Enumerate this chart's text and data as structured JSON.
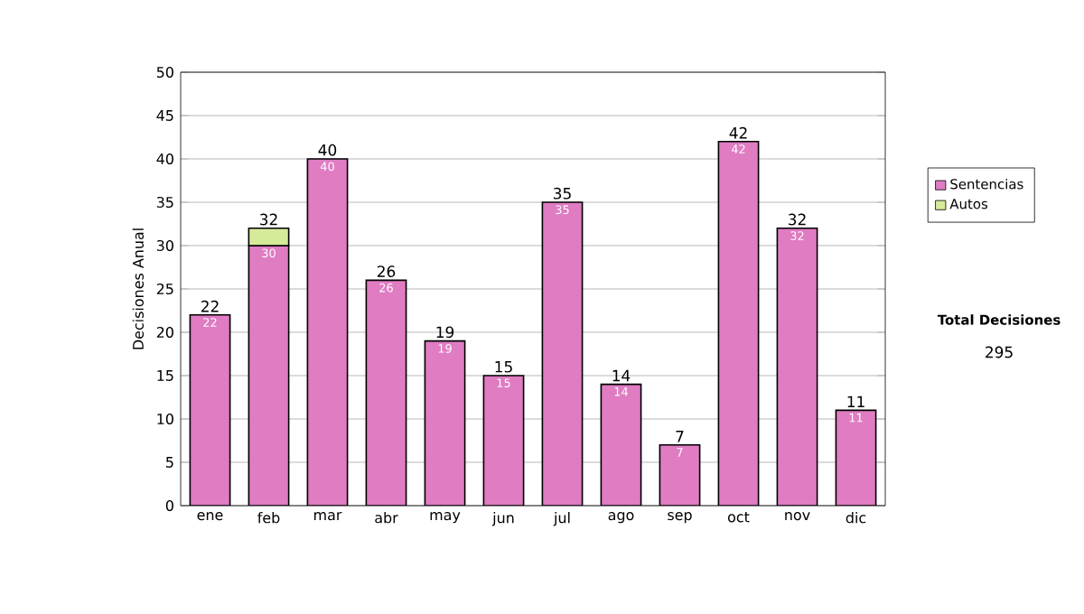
{
  "chart_data": {
    "type": "bar",
    "stacked": true,
    "categories": [
      "ene",
      "feb",
      "mar",
      "abr",
      "may",
      "jun",
      "jul",
      "ago",
      "sep",
      "oct",
      "nov",
      "dic"
    ],
    "ylabel": "Decisiones Anual",
    "series": [
      {
        "name": "Sentencias",
        "color": "#df7cc2",
        "values": [
          22,
          30,
          40,
          26,
          19,
          15,
          35,
          14,
          7,
          42,
          32,
          11
        ],
        "value_labels": [
          "22",
          "30",
          "40",
          "26",
          "19",
          "15",
          "35",
          "14",
          "7",
          "42",
          "32",
          "11"
        ]
      },
      {
        "name": "Autos",
        "color": "#d6eb9a",
        "values": [
          null,
          2,
          null,
          null,
          null,
          null,
          null,
          null,
          null,
          null,
          null,
          null
        ]
      }
    ],
    "totals": [
      "22",
      "32",
      "40",
      "26",
      "19",
      "15",
      "35",
      "14",
      "7",
      "42",
      "32",
      "11"
    ],
    "ylim": [
      0,
      50
    ],
    "yticks": [
      0,
      5,
      10,
      15,
      20,
      25,
      30,
      35,
      40,
      45,
      50
    ],
    "grid": "y",
    "legend": "right",
    "annotations": [
      "Total Decisiones",
      "295"
    ]
  }
}
